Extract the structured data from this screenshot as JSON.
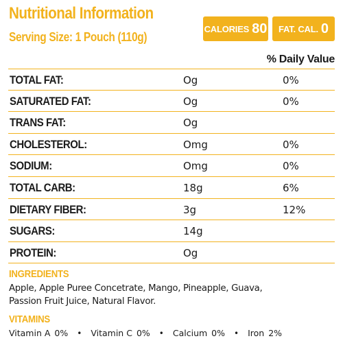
{
  "header": {
    "title": "Nutritional Information",
    "serving": "Serving Size: 1 Pouch (110g)"
  },
  "badges": {
    "calories_label": "CALORIES",
    "calories_value": "80",
    "fat_cal_label": "FAT. CAL.",
    "fat_cal_value": "0"
  },
  "table": {
    "dv_header": "% Daily Value",
    "rows": [
      {
        "nutrient": "TOTAL FAT:",
        "amount": "Og",
        "dv": "0%"
      },
      {
        "nutrient": "SATURATED FAT:",
        "amount": "Og",
        "dv": "0%"
      },
      {
        "nutrient": "TRANS FAT:",
        "amount": "Og",
        "dv": ""
      },
      {
        "nutrient": "CHOLESTEROL:",
        "amount": "Omg",
        "dv": "0%"
      },
      {
        "nutrient": "SODIUM:",
        "amount": "Omg",
        "dv": "0%"
      },
      {
        "nutrient": "TOTAL CARB:",
        "amount": "18g",
        "dv": "6%"
      },
      {
        "nutrient": "DIETARY FIBER:",
        "amount": "3g",
        "dv": "12%"
      },
      {
        "nutrient": "SUGARS:",
        "amount": "14g",
        "dv": ""
      },
      {
        "nutrient": "PROTEIN:",
        "amount": "Og",
        "dv": ""
      }
    ]
  },
  "ingredients": {
    "title": "INGREDIENTS",
    "line1": "Apple, Apple Puree Concetrate, Mango, Pineapple, Guava,",
    "line2": "Passion Fruit Juice, Natural Flavor."
  },
  "vitamins": {
    "title": "VITAMINS",
    "items": [
      {
        "name": "Vitamin A",
        "value": "0%"
      },
      {
        "name": "Vitamin C",
        "value": "0%"
      },
      {
        "name": "Calcium",
        "value": "0%"
      },
      {
        "name": "Iron",
        "value": "2%"
      }
    ],
    "separator": "•"
  },
  "colors": {
    "accent": "#f2b21d",
    "text": "#1b1b1b"
  }
}
